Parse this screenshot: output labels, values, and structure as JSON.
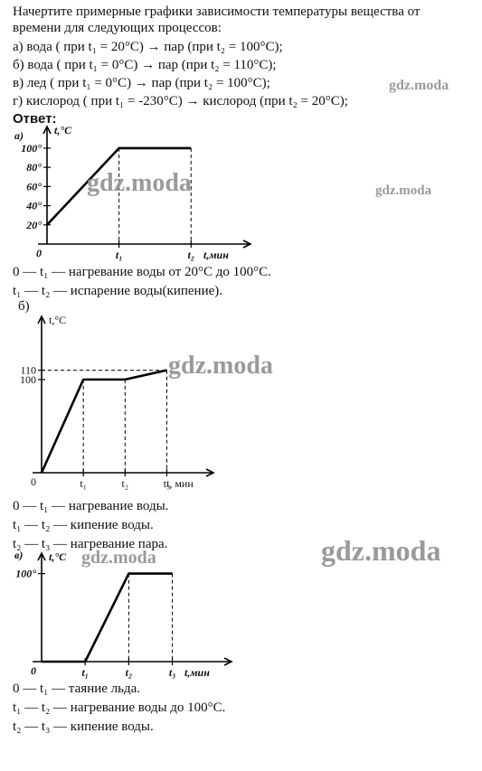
{
  "task": {
    "line1": "Начертите примерные графики зависимости температуры вещества от",
    "line2": "времени для следующих процессов:",
    "a": "а) вода ( при t₁ = 20°C) → пар (при t₂ = 100°C);",
    "b": "б) вода ( при t₁ = 0°C) → пар (при t₂ = 110°C);",
    "c": "в) лед ( при t₁ = 0°C) → пар (при t₂ = 100°C);",
    "d": "г) кислород ( при t₁ = -230°C) → кислород (при t₂ = 20°C);"
  },
  "answer_label": "Ответ:",
  "watermarks": [
    "gdz.moda",
    "gdz.moda",
    "gdz.moda",
    "gdz.moda",
    "gdz.moda",
    "gdz.moda"
  ],
  "captions": {
    "a1": "0 — t₁ — нагревание воды от 20°C до 100°C.",
    "a2": "t₁ — t₂ — испарение воды(кипение).",
    "b_label": "б)",
    "b1": "0 — t₁ — нагревание воды.",
    "b2": "t₁ — t₂ — кипение воды.",
    "b3": "t₂ — t₃ — нагревание пара.",
    "c1": "0 — t₁ — таяние льда.",
    "c2": "t₁ — t₂ — нагревание воды до 100°C.",
    "c3": "t₂ — t₃ — кипение воды."
  },
  "chart_data": [
    {
      "type": "line",
      "panel_label": "а)",
      "ylabel": "t,°C",
      "xlabel": "t,мин",
      "origin_label": "0",
      "yticks": [
        {
          "value": 20,
          "label": "20°"
        },
        {
          "value": 40,
          "label": "40°"
        },
        {
          "value": 60,
          "label": "60°"
        },
        {
          "value": 80,
          "label": "80°"
        },
        {
          "value": 100,
          "label": "100°"
        }
      ],
      "xticks": [
        {
          "value": 1,
          "label": "t₁"
        },
        {
          "value": 2,
          "label": "t₂"
        }
      ],
      "ylim": [
        0,
        115
      ],
      "xlim": [
        0,
        2.7
      ],
      "x": [
        0,
        1,
        2
      ],
      "y": [
        20,
        100,
        100
      ],
      "line_color": "#000000"
    },
    {
      "type": "line",
      "panel_label": "",
      "ylabel": "t,°C",
      "xlabel": "t, мин",
      "origin_label": "0",
      "yticks": [
        {
          "value": 100,
          "label": "100"
        },
        {
          "value": 110,
          "label": "110"
        }
      ],
      "xticks": [
        {
          "value": 1,
          "label": "t₁"
        },
        {
          "value": 2,
          "label": "t₂"
        },
        {
          "value": 3,
          "label": "t₃"
        }
      ],
      "ylim": [
        0,
        160
      ],
      "xlim": [
        0,
        3.9
      ],
      "x": [
        0,
        1,
        2,
        3
      ],
      "y": [
        0,
        100,
        100,
        110
      ],
      "line_color": "#000000"
    },
    {
      "type": "line",
      "panel_label": "в)",
      "ylabel": "t,°C",
      "xlabel": "t,мин",
      "origin_label": "0",
      "yticks": [
        {
          "value": 100,
          "label": "100°"
        }
      ],
      "xticks": [
        {
          "value": 1,
          "label": "t₁"
        },
        {
          "value": 2,
          "label": "t₂"
        },
        {
          "value": 3,
          "label": "t₃"
        }
      ],
      "ylim": [
        0,
        115
      ],
      "xlim": [
        0,
        4.15
      ],
      "x": [
        0,
        1,
        2,
        3
      ],
      "y": [
        0,
        0,
        100,
        100
      ],
      "line_color": "#000000"
    }
  ]
}
